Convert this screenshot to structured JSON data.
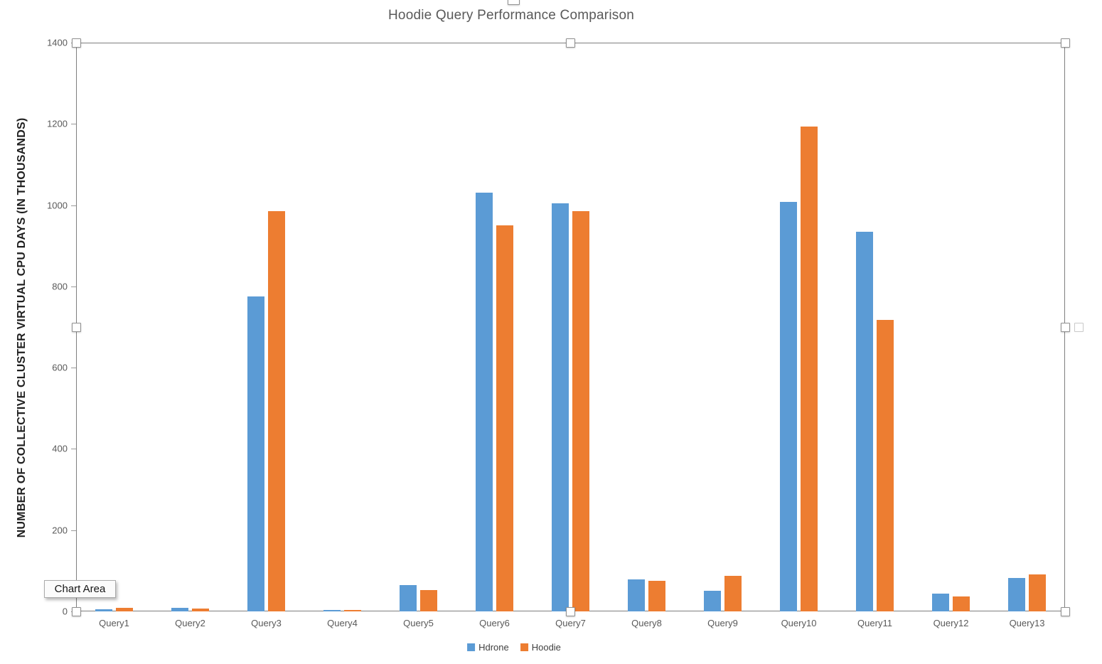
{
  "window": {
    "tooltip": "Chart Area"
  },
  "chart_data": {
    "type": "bar",
    "title": "Hoodie Query Performance Comparison",
    "xlabel": "",
    "ylabel": "NUMBER OF COLLECTIVE CLUSTER VIRTUAL CPU DAYS (IN THOUSANDS)",
    "categories": [
      "Query1",
      "Query2",
      "Query3",
      "Query4",
      "Query5",
      "Query6",
      "Query7",
      "Query8",
      "Query9",
      "Query10",
      "Query11",
      "Query12",
      "Query13"
    ],
    "series": [
      {
        "name": "Hdrone",
        "color": "#5B9BD5",
        "values": [
          5,
          9,
          775,
          3,
          65,
          1030,
          1005,
          78,
          50,
          1008,
          935,
          44,
          82
        ]
      },
      {
        "name": "Hoodie",
        "color": "#ED7D31",
        "values": [
          9,
          7,
          985,
          4,
          52,
          950,
          985,
          76,
          88,
          1193,
          718,
          36,
          91
        ]
      }
    ],
    "ylim": [
      0,
      1400
    ],
    "yticks": [
      0,
      200,
      400,
      600,
      800,
      1000,
      1200,
      1400
    ],
    "grid": "horizontal",
    "legend_position": "bottom",
    "colors": {
      "gridline": "#e6e6e6",
      "axis_text": "#595959",
      "title_text": "#595959",
      "selection_border": "#7f7f7f"
    }
  }
}
